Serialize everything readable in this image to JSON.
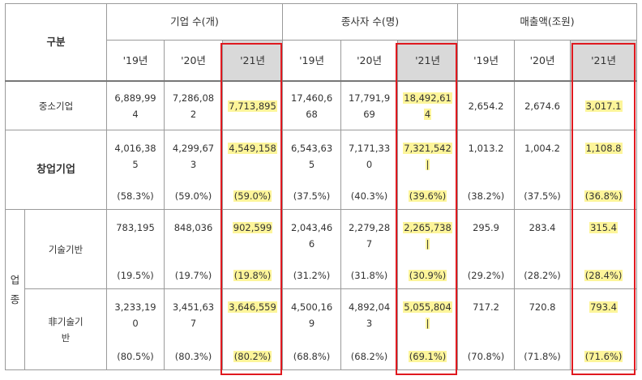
{
  "header": {
    "category": "구분",
    "groups": [
      "기업 수(개)",
      "종사자 수(명)",
      "매출액(조원)"
    ],
    "years": [
      "'19년",
      "'20년",
      "'21년"
    ]
  },
  "rows": {
    "sme": {
      "label": "중소기업",
      "values": [
        "6,889,99\n4",
        "7,286,08\n2",
        "7,713,895",
        "17,460,6\n68",
        "17,791,9\n69",
        "18,492,61\n4",
        "2,654.2",
        "2,674.6",
        "3,017.1"
      ]
    },
    "startup": {
      "label": "창업기업",
      "values": [
        "4,016,38\n5",
        "4,299,67\n3",
        "4,549,158",
        "6,543,63\n5",
        "7,171,33\n0",
        "7,321,542\n|",
        "1,013.2",
        "1,004.2",
        "1,108.8"
      ],
      "pcts": [
        "(58.3%)",
        "(59.0%)",
        "(59.0%)",
        "(37.5%)",
        "(40.3%)",
        "(39.6%)",
        "(38.2%)",
        "(37.5%)",
        "(36.8%)"
      ]
    },
    "tech": {
      "label": "기술기반",
      "values": [
        "783,195",
        "848,036",
        "902,599",
        "2,043,46\n6",
        "2,279,28\n7",
        "2,265,738\n|",
        "295.9",
        "283.4",
        "315.4"
      ],
      "pcts": [
        "(19.5%)",
        "(19.7%)",
        "(19.8%)",
        "(31.2%)",
        "(31.8%)",
        "(30.9%)",
        "(29.2%)",
        "(28.2%)",
        "(28.4%)"
      ]
    },
    "nontech": {
      "label": "非기술기\n반",
      "values": [
        "3,233,19\n0",
        "3,451,63\n7",
        "3,646,559",
        "4,500,16\n9",
        "4,892,04\n3",
        "5,055,804\n|",
        "717.2",
        "720.8",
        "793.4"
      ],
      "pcts": [
        "(80.5%)",
        "(80.3%)",
        "(80.2%)",
        "(68.8%)",
        "(68.2%)",
        "(69.1%)",
        "(70.8%)",
        "(71.8%)",
        "(71.6%)"
      ]
    }
  },
  "side_label": "업\n종",
  "colors": {
    "highlight": "#fdf59a",
    "box": "#e0191f",
    "header_fill": "#d9d9d9"
  }
}
